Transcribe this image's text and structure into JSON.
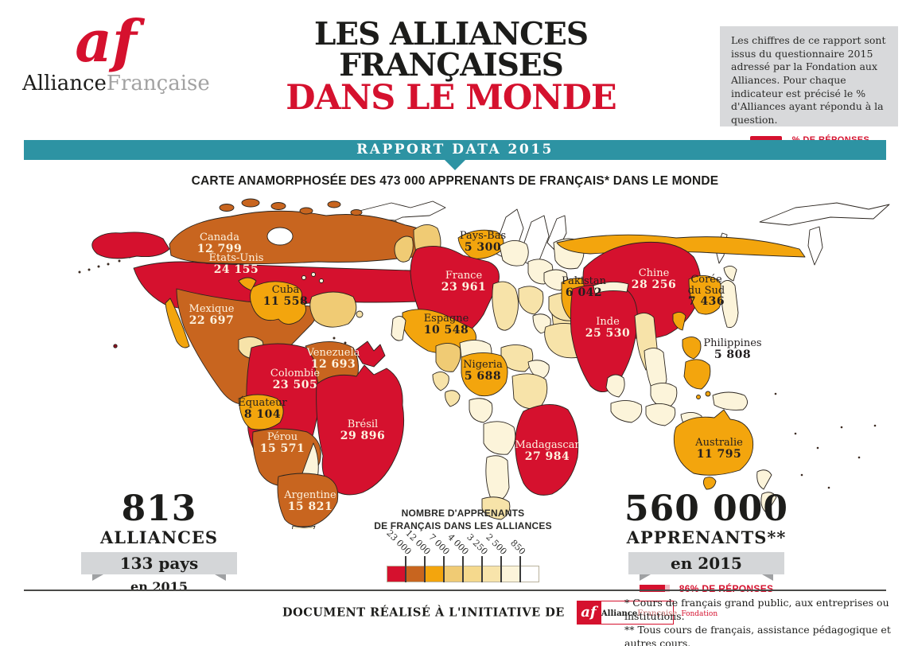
{
  "logo": {
    "monogram": "af",
    "brand_black": "Alliance",
    "brand_gray": "Française"
  },
  "title": {
    "line1": "LES ALLIANCES",
    "line2": "FRANÇAISES",
    "line3": "DANS LE MONDE"
  },
  "info_box": {
    "text": "Les chiffres de ce rapport sont issus du questionnaire 2015 adressé par la Fondation aux Alliances. Pour chaque indicateur est précisé le % d'Alliances ayant répondu à la question.",
    "legend_label": "% DE RÉPONSES"
  },
  "banner": {
    "label": "RAPPORT DATA 2015"
  },
  "map": {
    "title": "CARTE ANAMORPHOSÉE DES 473 000 APPRENANTS DE FRANÇAIS* DANS LE MONDE",
    "countries": [
      {
        "id": "canada",
        "name": "Canada",
        "value": "12 799"
      },
      {
        "id": "etats_unis",
        "name": "États-Unis",
        "value": "24 155"
      },
      {
        "id": "cuba",
        "name": "Cuba",
        "value": "11 558"
      },
      {
        "id": "mexique",
        "name": "Mexique",
        "value": "22 697"
      },
      {
        "id": "venezuela",
        "name": "Venezuela",
        "value": "12 693"
      },
      {
        "id": "colombie",
        "name": "Colombie",
        "value": "23 505"
      },
      {
        "id": "equateur",
        "name": "Équateur",
        "value": "8 104"
      },
      {
        "id": "perou",
        "name": "Pérou",
        "value": "15 571"
      },
      {
        "id": "bresil",
        "name": "Brésil",
        "value": "29 896"
      },
      {
        "id": "argentine",
        "name": "Argentine",
        "value": "15 821"
      },
      {
        "id": "pays_bas",
        "name": "Pays-Bas",
        "value": "5 300"
      },
      {
        "id": "france",
        "name": "France",
        "value": "23 961"
      },
      {
        "id": "espagne",
        "name": "Espagne",
        "value": "10 548"
      },
      {
        "id": "nigeria",
        "name": "Nigeria",
        "value": "5 688"
      },
      {
        "id": "madagascar",
        "name": "Madagascar",
        "value": "27 984"
      },
      {
        "id": "pakistan",
        "name": "Pakistan",
        "value": "6 042"
      },
      {
        "id": "inde",
        "name": "Inde",
        "value": "25 530"
      },
      {
        "id": "chine",
        "name": "Chine",
        "value": "28 256"
      },
      {
        "id": "coree_du_sud",
        "name": "Corée du Sud",
        "value": "7 436"
      },
      {
        "id": "philippines",
        "name": "Philippines",
        "value": "5 808"
      },
      {
        "id": "australie",
        "name": "Australie",
        "value": "11 795"
      }
    ]
  },
  "legend": {
    "title_line1": "NOMBRE D'APPRENANTS",
    "title_line2": "DE FRANÇAIS DANS LES ALLIANCES",
    "ticks": [
      "23 000",
      "12 000",
      "7 000",
      "4 000",
      "3 250",
      "2 500",
      "850"
    ],
    "colors": [
      "#d5112e",
      "#c8651f",
      "#f3a50d",
      "#f0cb74",
      "#f5d98d",
      "#f8e4ab",
      "#fcf4da",
      "#ffffff"
    ]
  },
  "stats": {
    "left": {
      "big": "813",
      "sub": "ALLIANCES",
      "ribbon": "133 pays",
      "year": "en 2015"
    },
    "right": {
      "big": "560 000",
      "sub": "APPRENANTS**",
      "ribbon": "en 2015",
      "response": "86% DE RÉPONSES",
      "response_pct": 86
    }
  },
  "footer": {
    "credit": "DOCUMENT RÉALISÉ À L'INITIATIVE DE",
    "logo_af": "af",
    "logo_line_black": "Alliance",
    "logo_line_gray": "Française",
    "logo_sub": "Fondation",
    "note1": "* Cours de français grand public, aux entreprises ou institutions.",
    "note2": "** Tous cours de français, assistance pédagogique et autres cours."
  }
}
